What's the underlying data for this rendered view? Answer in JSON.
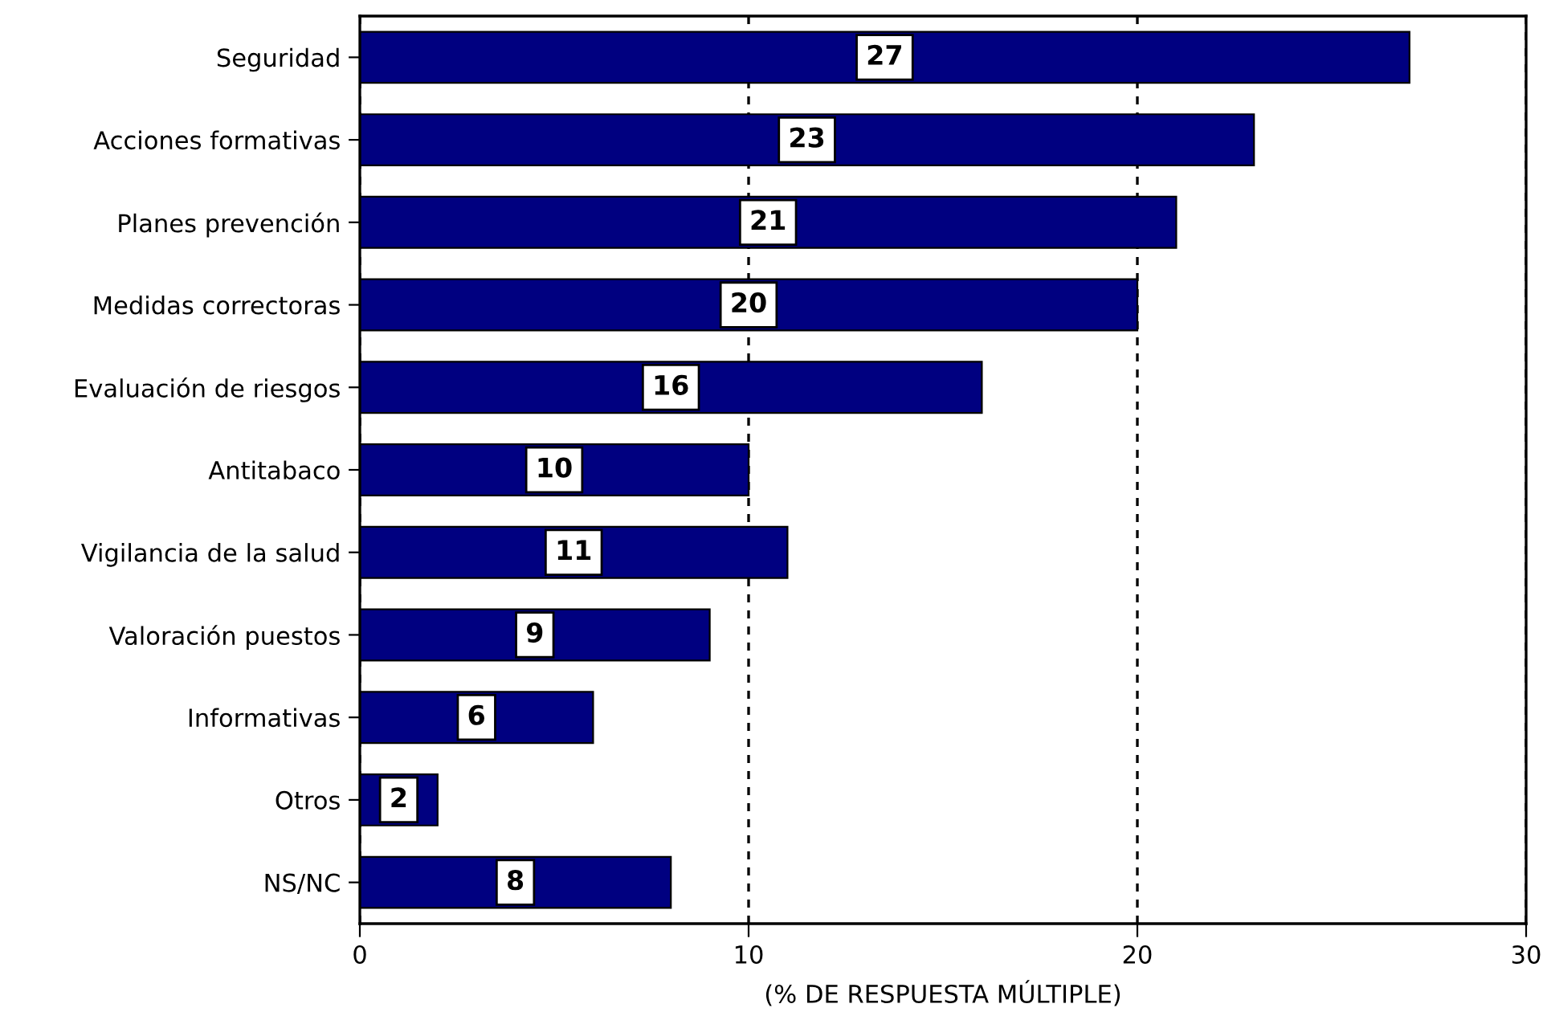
{
  "chart_data": {
    "type": "bar",
    "orientation": "horizontal",
    "xlabel": "(% DE RESPUESTA MÚLTIPLE)",
    "categories": [
      "Seguridad",
      "Acciones formativas",
      "Planes prevención",
      "Medidas correctoras",
      "Evaluación de riesgos",
      "Antitabaco",
      "Vigilancia de la salud",
      "Valoración puestos",
      "Informativas",
      "Otros",
      "NS/NC"
    ],
    "values": [
      27,
      23,
      21,
      20,
      16,
      10,
      11,
      9,
      6,
      2,
      8
    ],
    "color": "#000080",
    "xlim": [
      0,
      30
    ],
    "xticks": [
      0,
      10,
      20,
      30
    ],
    "grid": "x",
    "data_labels": true
  }
}
